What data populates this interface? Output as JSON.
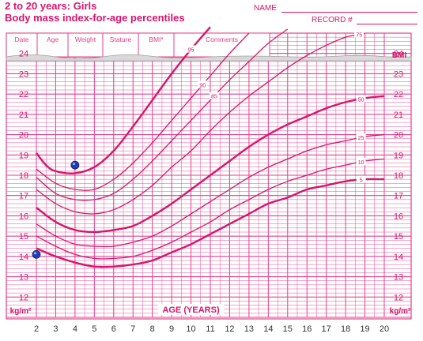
{
  "header": {
    "title": "2 to 20 years: Girls",
    "subtitle": "Body mass index-for-age percentiles",
    "name_label": "NAME",
    "record_label": "RECORD #"
  },
  "table": {
    "columns": [
      "Date",
      "Age",
      "Weight",
      "Stature",
      "BMI*",
      "Comments"
    ]
  },
  "colors": {
    "grid": "#e2408d",
    "curve": "#d6156c",
    "marker": "#1f3fb4"
  },
  "chart_data": {
    "type": "line",
    "xlabel": "AGE (YEARS)",
    "ylabel_left": "kg/m²",
    "ylabel_right": "kg/m²",
    "top_right_label": "BMI",
    "xlim": [
      2,
      20
    ],
    "ylim": [
      11,
      25
    ],
    "x_ticks": [
      "2",
      "3",
      "4",
      "5",
      "6",
      "7",
      "8",
      "9",
      "10",
      "11",
      "12",
      "13",
      "14",
      "15",
      "16",
      "17",
      "18",
      "19",
      "20"
    ],
    "y_ticks": [
      "12",
      "13",
      "14",
      "15",
      "16",
      "17",
      "18",
      "19",
      "20",
      "21",
      "22",
      "23",
      "24"
    ],
    "series": [
      {
        "name": "95",
        "points": [
          [
            2,
            19.1
          ],
          [
            2.5,
            18.5
          ],
          [
            3,
            18.2
          ],
          [
            4,
            18.1
          ],
          [
            5,
            18.4
          ],
          [
            6,
            19.2
          ],
          [
            7,
            20.4
          ],
          [
            8,
            21.7
          ],
          [
            9,
            23.0
          ],
          [
            10,
            24.2
          ],
          [
            11,
            25.3
          ]
        ]
      },
      {
        "name": "90",
        "points": [
          [
            2,
            18.3
          ],
          [
            3,
            17.6
          ],
          [
            4,
            17.3
          ],
          [
            5,
            17.3
          ],
          [
            6,
            17.8
          ],
          [
            7,
            18.6
          ],
          [
            8,
            19.6
          ],
          [
            9,
            20.7
          ],
          [
            10,
            21.8
          ],
          [
            11,
            22.9
          ],
          [
            12,
            24.0
          ],
          [
            13,
            25.0
          ]
        ]
      },
      {
        "name": "85",
        "points": [
          [
            2,
            17.9
          ],
          [
            3,
            17.1
          ],
          [
            4,
            16.8
          ],
          [
            5,
            16.8
          ],
          [
            6,
            17.1
          ],
          [
            7,
            17.8
          ],
          [
            8,
            18.7
          ],
          [
            9,
            19.7
          ],
          [
            10,
            20.7
          ],
          [
            11,
            21.7
          ],
          [
            12,
            22.7
          ],
          [
            13,
            23.6
          ],
          [
            14,
            24.5
          ],
          [
            15,
            25.2
          ]
        ]
      },
      {
        "name": "75",
        "points": [
          [
            2,
            17.3
          ],
          [
            3,
            16.6
          ],
          [
            4,
            16.2
          ],
          [
            5,
            16.1
          ],
          [
            6,
            16.3
          ],
          [
            7,
            16.8
          ],
          [
            8,
            17.5
          ],
          [
            9,
            18.4
          ],
          [
            10,
            19.2
          ],
          [
            11,
            20.2
          ],
          [
            12,
            21.1
          ],
          [
            13,
            21.9
          ],
          [
            14,
            22.6
          ],
          [
            15,
            23.3
          ],
          [
            16,
            23.9
          ],
          [
            17,
            24.4
          ],
          [
            18,
            24.8
          ],
          [
            19,
            25.0
          ]
        ]
      },
      {
        "name": "50",
        "points": [
          [
            2,
            16.4
          ],
          [
            3,
            15.7
          ],
          [
            4,
            15.3
          ],
          [
            5,
            15.2
          ],
          [
            6,
            15.3
          ],
          [
            7,
            15.5
          ],
          [
            8,
            16.0
          ],
          [
            9,
            16.6
          ],
          [
            10,
            17.3
          ],
          [
            11,
            18.0
          ],
          [
            12,
            18.7
          ],
          [
            13,
            19.4
          ],
          [
            14,
            20.0
          ],
          [
            15,
            20.5
          ],
          [
            16,
            20.9
          ],
          [
            17,
            21.3
          ],
          [
            18,
            21.6
          ],
          [
            19,
            21.8
          ],
          [
            20,
            21.9
          ]
        ]
      },
      {
        "name": "25",
        "points": [
          [
            2,
            15.6
          ],
          [
            3,
            15.0
          ],
          [
            4,
            14.6
          ],
          [
            5,
            14.5
          ],
          [
            6,
            14.5
          ],
          [
            7,
            14.7
          ],
          [
            8,
            15.0
          ],
          [
            9,
            15.5
          ],
          [
            10,
            16.1
          ],
          [
            11,
            16.7
          ],
          [
            12,
            17.3
          ],
          [
            13,
            17.9
          ],
          [
            14,
            18.4
          ],
          [
            15,
            18.8
          ],
          [
            16,
            19.2
          ],
          [
            17,
            19.5
          ],
          [
            18,
            19.7
          ],
          [
            19,
            19.9
          ],
          [
            20,
            20.0
          ]
        ]
      },
      {
        "name": "10",
        "points": [
          [
            2,
            15.0
          ],
          [
            3,
            14.5
          ],
          [
            4,
            14.1
          ],
          [
            5,
            13.9
          ],
          [
            6,
            13.9
          ],
          [
            7,
            14.0
          ],
          [
            8,
            14.3
          ],
          [
            9,
            14.7
          ],
          [
            10,
            15.2
          ],
          [
            11,
            15.7
          ],
          [
            12,
            16.3
          ],
          [
            13,
            16.8
          ],
          [
            14,
            17.3
          ],
          [
            15,
            17.7
          ],
          [
            16,
            18.0
          ],
          [
            17,
            18.3
          ],
          [
            18,
            18.5
          ],
          [
            19,
            18.7
          ],
          [
            20,
            18.8
          ]
        ]
      },
      {
        "name": "5",
        "points": [
          [
            2,
            14.4
          ],
          [
            3,
            14.0
          ],
          [
            4,
            13.7
          ],
          [
            5,
            13.5
          ],
          [
            6,
            13.5
          ],
          [
            7,
            13.6
          ],
          [
            8,
            13.8
          ],
          [
            9,
            14.2
          ],
          [
            10,
            14.6
          ],
          [
            11,
            15.1
          ],
          [
            12,
            15.6
          ],
          [
            13,
            16.1
          ],
          [
            14,
            16.6
          ],
          [
            15,
            16.9
          ],
          [
            16,
            17.3
          ],
          [
            17,
            17.5
          ],
          [
            18,
            17.7
          ],
          [
            19,
            17.8
          ],
          [
            20,
            17.8
          ]
        ]
      }
    ],
    "markers": [
      {
        "x": 2.0,
        "y": 14.1
      },
      {
        "x": 4.0,
        "y": 18.5
      }
    ]
  }
}
